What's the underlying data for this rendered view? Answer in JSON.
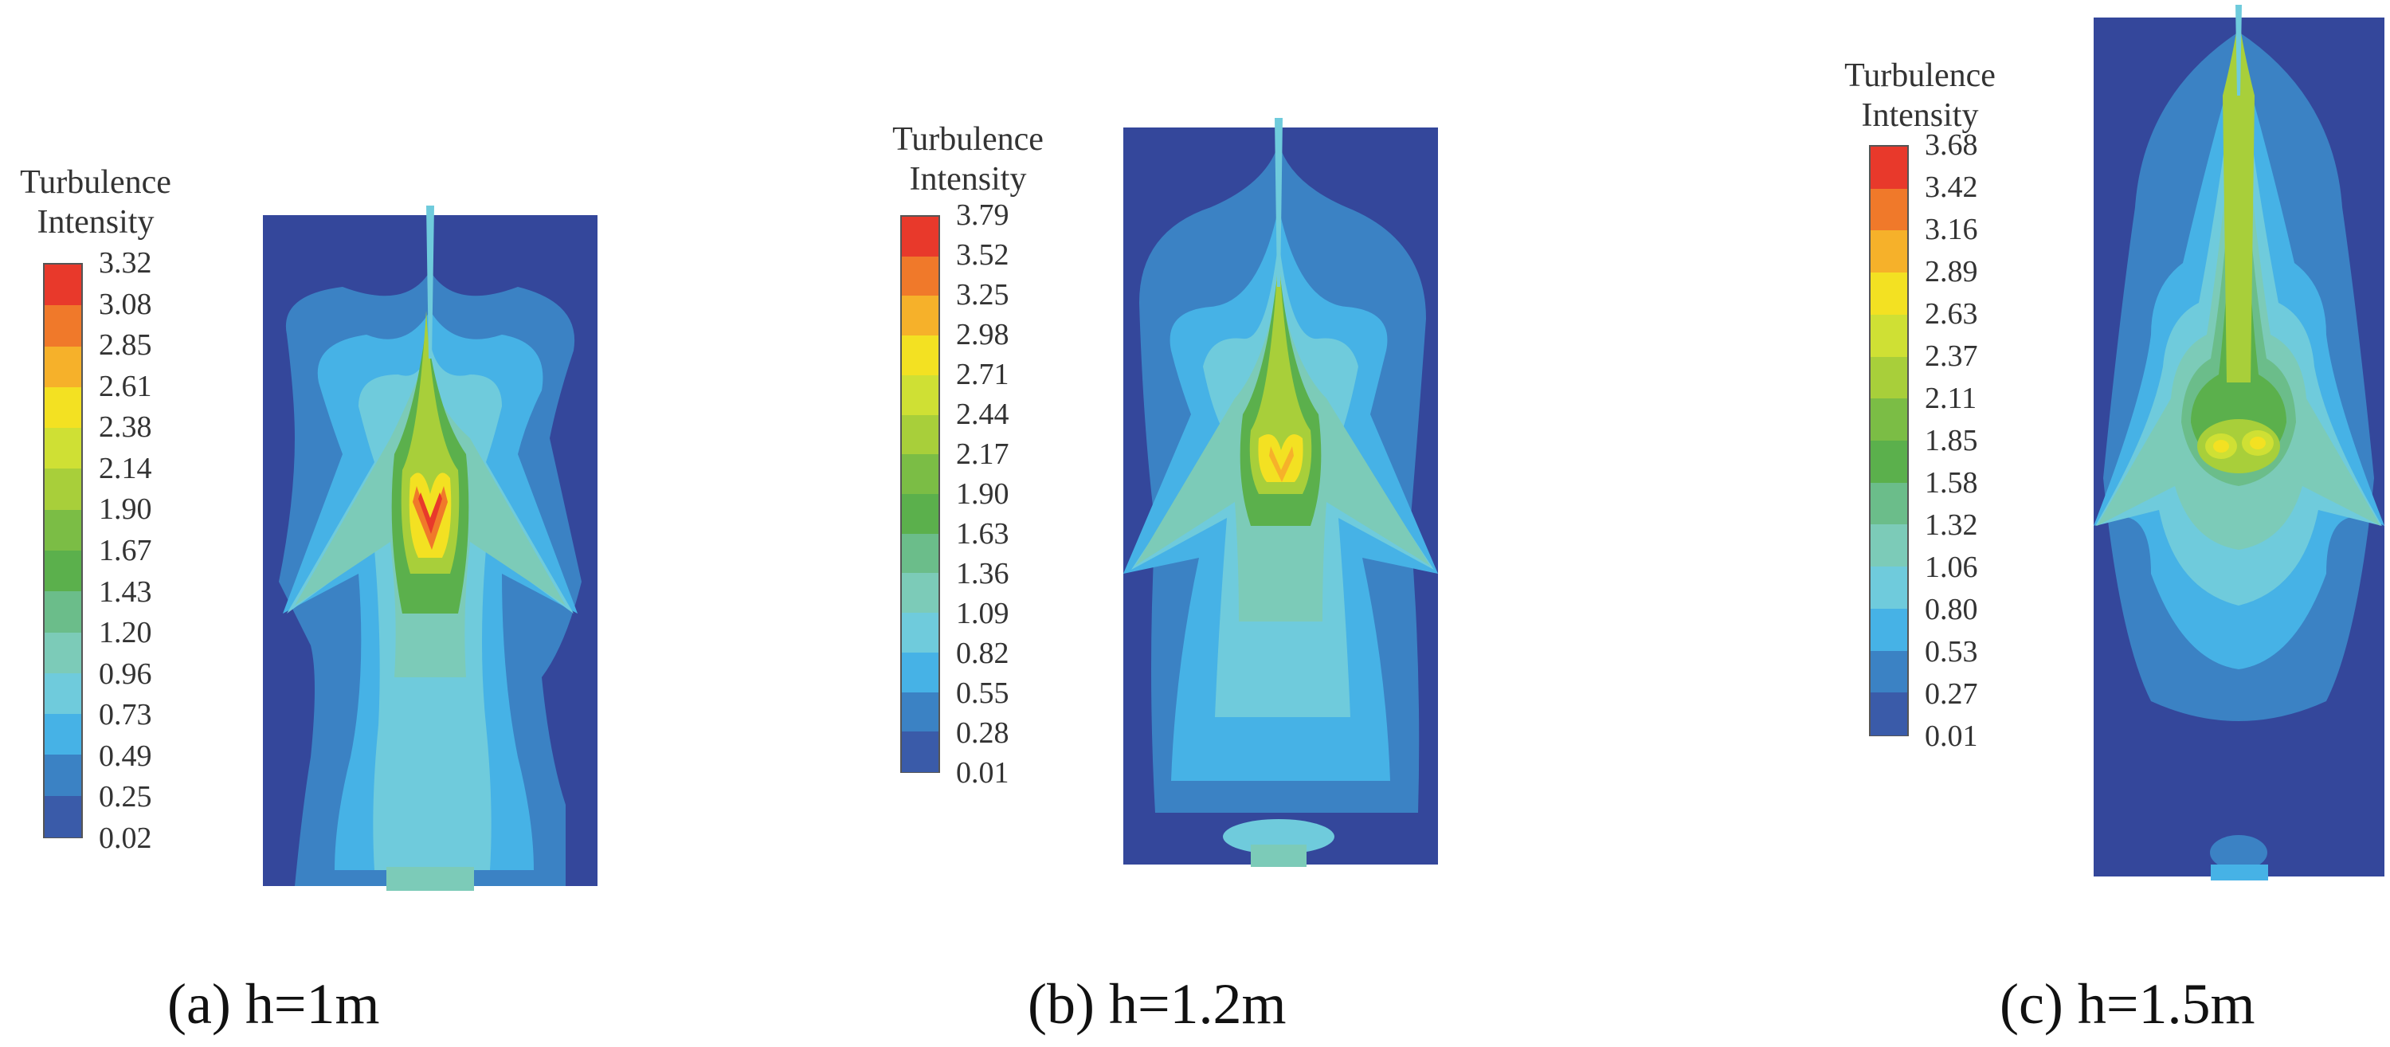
{
  "panels": [
    {
      "legend_title": [
        "Turbulence",
        "Intensity"
      ],
      "ticks": [
        "3.32",
        "3.08",
        "2.85",
        "2.61",
        "2.38",
        "2.14",
        "1.90",
        "1.67",
        "1.43",
        "1.20",
        "0.96",
        "0.73",
        "0.49",
        "0.25",
        "0.02"
      ],
      "caption": "(a) h=1m"
    },
    {
      "legend_title": [
        "Turbulence",
        "Intensity"
      ],
      "ticks": [
        "3.79",
        "3.52",
        "3.25",
        "2.98",
        "2.71",
        "2.44",
        "2.17",
        "1.90",
        "1.63",
        "1.36",
        "1.09",
        "0.82",
        "0.55",
        "0.28",
        "0.01"
      ],
      "caption": "(b) h=1.2m"
    },
    {
      "legend_title": [
        "Turbulence",
        "Intensity"
      ],
      "ticks": [
        "3.68",
        "3.42",
        "3.16",
        "2.89",
        "2.63",
        "2.37",
        "2.11",
        "1.85",
        "1.58",
        "1.32",
        "1.06",
        "0.80",
        "0.53",
        "0.27",
        "0.01"
      ],
      "caption": "(c) h=1.5m"
    }
  ],
  "colors": {
    "scale": [
      "#e8392b",
      "#f0792a",
      "#f6b12a",
      "#f3e122",
      "#cfe034",
      "#a8cf3a",
      "#7bbd45",
      "#5bb04c",
      "#6bbd8a",
      "#7ccbb8",
      "#6fcbdc",
      "#46b2e6",
      "#3b82c4",
      "#3a5ba9",
      "#34479b"
    ],
    "background": "#34479b"
  }
}
